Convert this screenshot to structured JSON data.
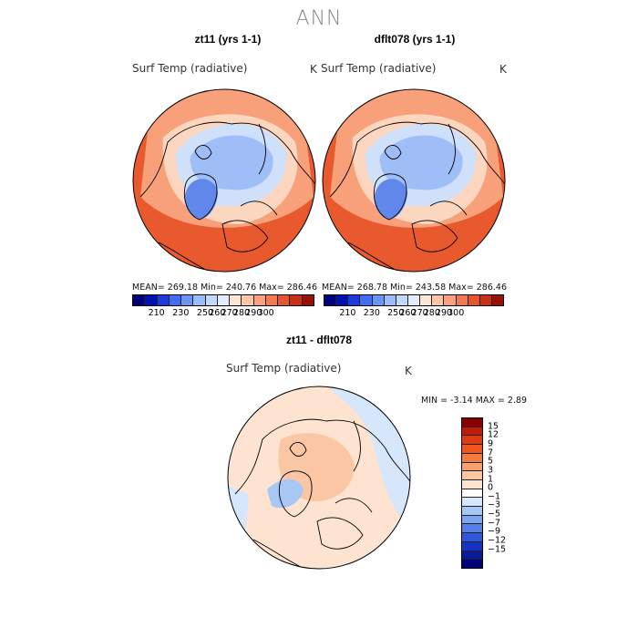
{
  "main_title": "ANN",
  "panels": [
    {
      "title": "zt11 (yrs 1-1)",
      "variable": "Surf Temp (radiative)",
      "unit": "K",
      "stats": "MEAN= 269.18   Min= 240.76   Max= 286.46"
    },
    {
      "title": "dflt078 (yrs 1-1)",
      "variable": "Surf Temp (radiative)",
      "unit": "K",
      "stats": "MEAN= 268.78   Min= 243.58   Max= 286.46"
    }
  ],
  "colorbar_top": {
    "labels": [
      "210",
      "230",
      "250",
      "260",
      "270",
      "280",
      "290",
      "300"
    ],
    "colors": [
      "#00007a",
      "#0011b0",
      "#1a3ae0",
      "#3f6ef0",
      "#6b95f5",
      "#9bbcf9",
      "#c4d8fc",
      "#e3edfd",
      "#fde6d3",
      "#fcc7a6",
      "#f8a17c",
      "#f17a53",
      "#e5552f",
      "#c8301a",
      "#9a0f08"
    ]
  },
  "diff_panel": {
    "title": "zt11 - dflt078",
    "variable": "Surf Temp (radiative)",
    "unit": "K",
    "stats": "MIN =   -3.14  MAX =    2.89",
    "colorbar_labels": [
      "15",
      "12",
      "9",
      "7",
      "5",
      "3",
      "1",
      "0",
      "−1",
      "−3",
      "−5",
      "−7",
      "−9",
      "−12",
      "−15"
    ],
    "colorbar_colors": [
      "#8b0000",
      "#c41a0a",
      "#e23a10",
      "#f0551c",
      "#f57a3d",
      "#f9a070",
      "#fbc6a4",
      "#fde3d0",
      "#ffffff",
      "#d6e6fb",
      "#a9c7f5",
      "#7ea6ee",
      "#5580e6",
      "#2f58dd",
      "#1434c8",
      "#0a1aa0",
      "#00007a"
    ]
  },
  "colors": {
    "land_outline": "#000000",
    "warm_deep": "#e85a2e",
    "warm_mid": "#f8a07a",
    "warm_light": "#fcd6bf",
    "cold_light": "#cfe0fb",
    "cold_mid": "#9fbdf6",
    "cold_deep": "#5f88ea"
  }
}
